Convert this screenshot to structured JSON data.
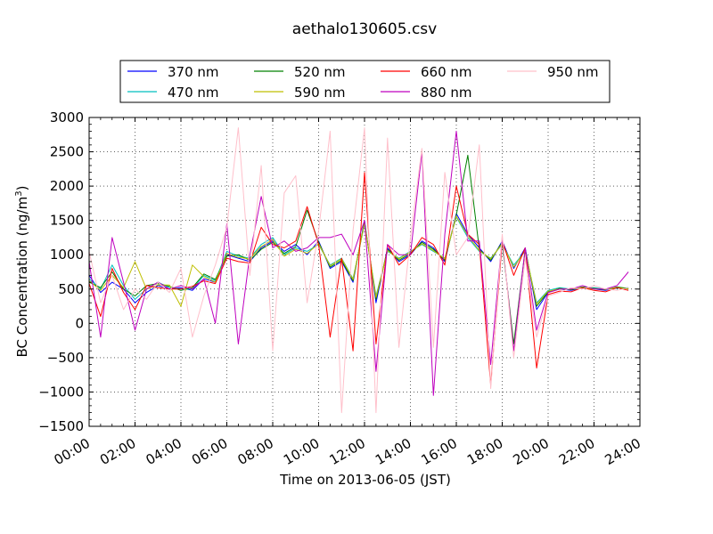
{
  "chart_data": {
    "type": "line",
    "title": "aethalo130605.csv",
    "xlabel": "Time on 2013-06-05 (JST)",
    "ylabel_main": "BC Concentration (ng/m",
    "ylabel_sup": "3",
    "ylabel_close": ")",
    "xlim": [
      "00:00",
      "24:00"
    ],
    "ylim": [
      -1500,
      3000
    ],
    "x_tick_labels": [
      "00:00",
      "02:00",
      "04:00",
      "06:00",
      "08:00",
      "10:00",
      "12:00",
      "14:00",
      "16:00",
      "18:00",
      "20:00",
      "22:00",
      "24:00"
    ],
    "y_tick_labels": [
      "−1500",
      "−1000",
      "−500",
      "0",
      "500",
      "1000",
      "1500",
      "2000",
      "2500",
      "3000"
    ],
    "y_ticks": [
      -1500,
      -1000,
      -500,
      0,
      500,
      1000,
      1500,
      2000,
      2500,
      3000
    ],
    "grid": true,
    "legend_position": "top-center, above plot",
    "series_shape_note": "Values estimated from the plot, sampled at 30-minute intervals.",
    "series": [
      {
        "name": "370 nm",
        "color": "#0000ff",
        "x": [
          "00:00",
          "00:30",
          "01:00",
          "01:30",
          "02:00",
          "02:30",
          "03:00",
          "03:30",
          "04:00",
          "04:30",
          "05:00",
          "05:30",
          "06:00",
          "06:30",
          "07:00",
          "07:30",
          "08:00",
          "08:30",
          "09:00",
          "09:30",
          "10:00",
          "10:30",
          "11:00",
          "11:30",
          "12:00",
          "12:30",
          "13:00",
          "13:30",
          "14:00",
          "14:30",
          "15:00",
          "15:30",
          "16:00",
          "16:30",
          "17:00",
          "17:30",
          "18:00",
          "18:30",
          "19:00",
          "19:30",
          "20:00",
          "20:30",
          "21:00",
          "21:30",
          "22:00",
          "22:30",
          "23:00",
          "23:30"
        ],
        "values": [
          700,
          450,
          600,
          500,
          300,
          450,
          550,
          500,
          520,
          480,
          650,
          600,
          1000,
          950,
          900,
          1100,
          1200,
          1050,
          1150,
          1000,
          1200,
          800,
          900,
          600,
          1500,
          300,
          1100,
          900,
          1000,
          1200,
          1100,
          900,
          1600,
          1300,
          1100,
          900,
          1200,
          800,
          1100,
          200,
          450,
          500,
          480,
          520,
          500,
          480,
          520,
          500
        ]
      },
      {
        "name": "470 nm",
        "color": "#00bfbf",
        "x": [
          "00:00",
          "00:30",
          "01:00",
          "01:30",
          "02:00",
          "02:30",
          "03:00",
          "03:30",
          "04:00",
          "04:30",
          "05:00",
          "05:30",
          "06:00",
          "06:30",
          "07:00",
          "07:30",
          "08:00",
          "08:30",
          "09:00",
          "09:30",
          "10:00",
          "10:30",
          "11:00",
          "11:30",
          "12:00",
          "12:30",
          "13:00",
          "13:30",
          "14:00",
          "14:30",
          "15:00",
          "15:30",
          "16:00",
          "16:30",
          "17:00",
          "17:30",
          "18:00",
          "18:30",
          "19:00",
          "19:30",
          "20:00",
          "20:30",
          "21:00",
          "21:30",
          "22:00",
          "22:30",
          "23:00",
          "23:30"
        ],
        "values": [
          650,
          500,
          850,
          550,
          350,
          500,
          600,
          520,
          500,
          500,
          700,
          620,
          1050,
          980,
          950,
          1150,
          1250,
          1000,
          1100,
          1050,
          1150,
          850,
          950,
          650,
          1450,
          400,
          1050,
          950,
          1050,
          1150,
          1050,
          950,
          1550,
          1250,
          1050,
          950,
          1150,
          850,
          1050,
          300,
          480,
          520,
          500,
          510,
          520,
          500,
          510,
          520
        ]
      },
      {
        "name": "520 nm",
        "color": "#008000",
        "x": [
          "00:00",
          "00:30",
          "01:00",
          "01:30",
          "02:00",
          "02:30",
          "03:00",
          "03:30",
          "04:00",
          "04:30",
          "05:00",
          "05:30",
          "06:00",
          "06:30",
          "07:00",
          "07:30",
          "08:00",
          "08:30",
          "09:00",
          "09:30",
          "10:00",
          "10:30",
          "11:00",
          "11:30",
          "12:00",
          "12:30",
          "13:00",
          "13:30",
          "14:00",
          "14:30",
          "15:00",
          "15:30",
          "16:00",
          "16:30",
          "17:00",
          "17:30",
          "18:00",
          "18:30",
          "19:00",
          "19:30",
          "20:00",
          "20:30",
          "21:00",
          "21:30",
          "22:00",
          "22:30",
          "23:00",
          "23:30"
        ],
        "values": [
          600,
          520,
          750,
          500,
          400,
          550,
          580,
          540,
          480,
          520,
          720,
          640,
          980,
          1000,
          920,
          1080,
          1180,
          1020,
          1120,
          1650,
          1180,
          820,
          920,
          620,
          1480,
          350,
          1080,
          920,
          1020,
          1180,
          1080,
          920,
          1580,
          2450,
          1080,
          920,
          1180,
          -300,
          1080,
          250,
          460,
          510,
          490,
          530,
          510,
          490,
          530,
          510
        ]
      },
      {
        "name": "590 nm",
        "color": "#bfbf00",
        "x": [
          "00:00",
          "00:30",
          "01:00",
          "01:30",
          "02:00",
          "02:30",
          "03:00",
          "03:30",
          "04:00",
          "04:30",
          "05:00",
          "05:30",
          "06:00",
          "06:30",
          "07:00",
          "07:30",
          "08:00",
          "08:30",
          "09:00",
          "09:30",
          "10:00",
          "10:30",
          "11:00",
          "11:30",
          "12:00",
          "12:30",
          "13:00",
          "13:30",
          "14:00",
          "14:30",
          "15:00",
          "15:30",
          "16:00",
          "16:30",
          "17:00",
          "17:30",
          "18:00",
          "18:30",
          "19:00",
          "19:30",
          "20:00",
          "20:30",
          "21:00",
          "21:30",
          "22:00",
          "22:30",
          "23:00",
          "23:30"
        ],
        "values": [
          620,
          480,
          700,
          520,
          900,
          500,
          560,
          560,
          250,
          850,
          680,
          600,
          1020,
          960,
          940,
          1120,
          1220,
          980,
          1080,
          1020,
          1160,
          840,
          940,
          640,
          1460,
          380,
          1060,
          940,
          1040,
          1160,
          1060,
          940,
          1560,
          1280,
          1060,
          940,
          1160,
          820,
          1060,
          280,
          470,
          500,
          500,
          520,
          500,
          500,
          520,
          500
        ]
      },
      {
        "name": "660 nm",
        "color": "#ff0000",
        "x": [
          "00:00",
          "00:30",
          "01:00",
          "01:30",
          "02:00",
          "02:30",
          "03:00",
          "03:30",
          "04:00",
          "04:30",
          "05:00",
          "05:30",
          "06:00",
          "06:30",
          "07:00",
          "07:30",
          "08:00",
          "08:30",
          "09:00",
          "09:30",
          "10:00",
          "10:30",
          "11:00",
          "11:30",
          "12:00",
          "12:30",
          "13:00",
          "13:30",
          "14:00",
          "14:30",
          "15:00",
          "15:30",
          "16:00",
          "16:30",
          "17:00",
          "17:30",
          "18:00",
          "18:30",
          "19:00",
          "19:30",
          "20:00",
          "20:30",
          "21:00",
          "21:30",
          "22:00",
          "22:30",
          "23:00",
          "23:30"
        ],
        "values": [
          580,
          100,
          800,
          450,
          200,
          550,
          520,
          500,
          500,
          540,
          620,
          580,
          950,
          900,
          880,
          1400,
          1150,
          1100,
          1200,
          1700,
          1150,
          -200,
          950,
          -400,
          2200,
          -300,
          1150,
          850,
          1000,
          1250,
          1150,
          850,
          2000,
          1300,
          1150,
          -900,
          1200,
          700,
          1100,
          -650,
          420,
          470,
          460,
          520,
          480,
          460,
          520,
          480
        ]
      },
      {
        "name": "880 nm",
        "color": "#bf00bf",
        "x": [
          "00:00",
          "00:30",
          "01:00",
          "01:30",
          "02:00",
          "02:30",
          "03:00",
          "03:30",
          "04:00",
          "04:30",
          "05:00",
          "05:30",
          "06:00",
          "06:30",
          "07:00",
          "07:30",
          "08:00",
          "08:30",
          "09:00",
          "09:30",
          "10:00",
          "10:30",
          "11:00",
          "11:30",
          "12:00",
          "12:30",
          "13:00",
          "13:30",
          "14:00",
          "14:30",
          "15:00",
          "15:30",
          "16:00",
          "16:30",
          "17:00",
          "17:30",
          "18:00",
          "18:30",
          "19:00",
          "19:30",
          "20:00",
          "20:30",
          "21:00",
          "21:30",
          "22:00",
          "22:30",
          "23:00",
          "23:30"
        ],
        "values": [
          900,
          -200,
          1250,
          600,
          -100,
          500,
          600,
          500,
          550,
          500,
          650,
          0,
          1450,
          -300,
          1000,
          1850,
          1100,
          1200,
          1050,
          1100,
          1250,
          1250,
          1300,
          1000,
          1500,
          -700,
          1150,
          1000,
          1000,
          2500,
          -1050,
          1300,
          2800,
          1200,
          1200,
          -600,
          1250,
          -400,
          1100,
          -100,
          450,
          500,
          500,
          550,
          500,
          500,
          550,
          750
        ]
      },
      {
        "name": "950 nm",
        "color": "#ffc0cb",
        "x": [
          "00:00",
          "00:30",
          "01:00",
          "01:30",
          "02:00",
          "02:30",
          "03:00",
          "03:30",
          "04:00",
          "04:30",
          "05:00",
          "05:30",
          "06:00",
          "06:30",
          "07:00",
          "07:30",
          "08:00",
          "08:30",
          "09:00",
          "09:30",
          "10:00",
          "10:30",
          "11:00",
          "11:30",
          "12:00",
          "12:30",
          "13:00",
          "13:30",
          "14:00",
          "14:30",
          "15:00",
          "15:30",
          "16:00",
          "16:30",
          "17:00",
          "17:30",
          "18:00",
          "18:30",
          "19:00",
          "19:30",
          "20:00",
          "20:30",
          "21:00",
          "21:30",
          "22:00",
          "22:30",
          "23:00",
          "23:30"
        ],
        "values": [
          1050,
          300,
          700,
          200,
          500,
          350,
          600,
          450,
          800,
          -200,
          400,
          850,
          1400,
          2850,
          700,
          2300,
          -400,
          1900,
          2150,
          300,
          1350,
          2800,
          -1300,
          1350,
          2850,
          -1300,
          2700,
          -350,
          1250,
          2550,
          -350,
          2200,
          1000,
          1250,
          2600,
          -950,
          1300,
          -500,
          950,
          -200,
          400,
          450,
          520,
          500,
          550,
          500,
          480,
          520
        ]
      }
    ]
  }
}
